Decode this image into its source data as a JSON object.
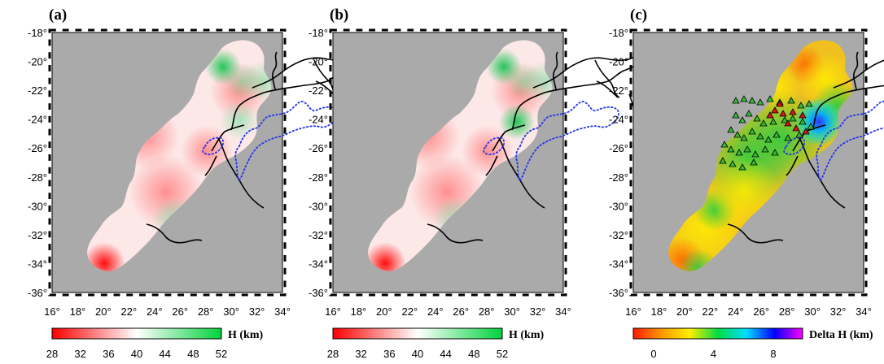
{
  "panels": [
    {
      "label": "(a)",
      "colorbar": {
        "title": "H (km)",
        "ticks": [
          "28",
          "32",
          "36",
          "40",
          "44",
          "48",
          "52"
        ],
        "colors": [
          "#ff0000",
          "#ffffff",
          "#00d23c"
        ]
      }
    },
    {
      "label": "(b)",
      "colorbar": {
        "title": "H (km)",
        "ticks": [
          "28",
          "32",
          "36",
          "40",
          "44",
          "48",
          "52"
        ],
        "colors": [
          "#ff0000",
          "#ffffff",
          "#00d23c"
        ]
      }
    },
    {
      "label": "(c)",
      "colorbar": {
        "title": "Delta H (km)",
        "ticks": [
          "0",
          "4",
          "8"
        ],
        "colors": [
          "#ff1a00",
          "#ff9900",
          "#ffee00",
          "#00dd44",
          "#00ddff",
          "#0000ff",
          "#ff00ff"
        ]
      }
    }
  ],
  "axes": {
    "lon_labels": [
      "16°",
      "18°",
      "20°",
      "22°",
      "24°",
      "26°",
      "28°",
      "30°",
      "32°",
      "34°"
    ],
    "lat_labels": [
      "-18°",
      "-20°",
      "-22°",
      "-24°",
      "-26°",
      "-28°",
      "-30°",
      "-32°",
      "-34°",
      "-36°"
    ]
  },
  "colors": {
    "ocean_background": "#aaaaaa",
    "boundary_lines": "#000000",
    "dotted_outline": "#2233ee",
    "station_green": "#33bb33",
    "station_red": "#dd1111"
  },
  "icons": [
    "station-triangle-icon"
  ]
}
